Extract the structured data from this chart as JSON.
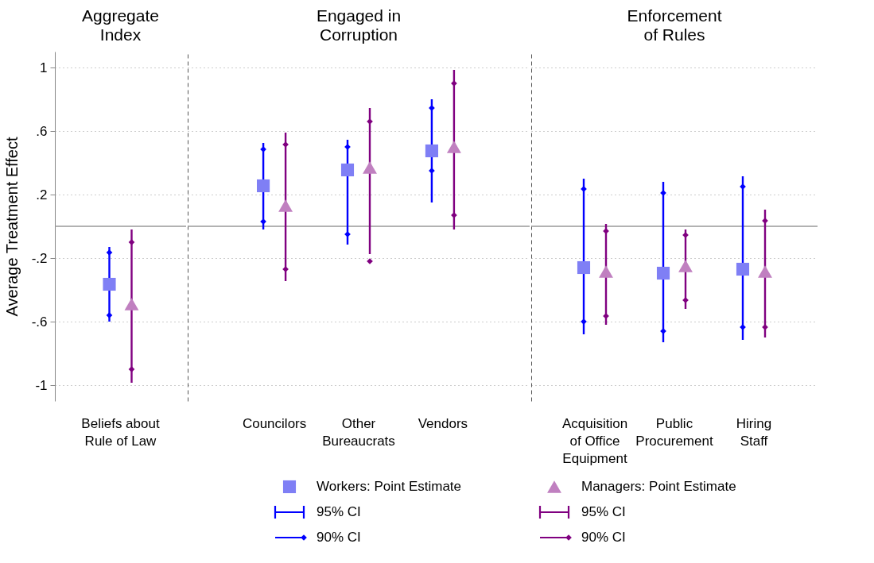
{
  "chart_data": [
    {
      "type": "scatter",
      "title": "Aggregate\nIndex",
      "ylabel": "Average Treatment Effect",
      "categories": [
        "Beliefs about\nRule of Law"
      ],
      "ylim": [
        -1.1,
        1.1
      ],
      "yticks": [
        {
          "value": -1,
          "label": "-1"
        },
        {
          "value": -0.6,
          "label": "-.6"
        },
        {
          "value": -0.2,
          "label": "-.2"
        },
        {
          "value": 0.2,
          "label": ".2"
        },
        {
          "value": 0.6,
          "label": ".6"
        },
        {
          "value": 1,
          "label": "1"
        }
      ],
      "grid": "y",
      "legend": "bottom",
      "ref_lines": [
        {
          "axis": "y",
          "value": 0,
          "color": "#999999"
        }
      ],
      "series": [
        {
          "name": "Workers: Point Estimate",
          "color": "#7f7ff5",
          "marker": "square",
          "values": [
            -0.365
          ]
        },
        {
          "name": "95% CI",
          "color": "#0000ff",
          "type": "bar",
          "base": [
            -0.6
          ],
          "values": [
            0.47
          ]
        },
        {
          "name": "90% CI",
          "color": "#0000ff",
          "marker": "diamond",
          "x": [
            "Beliefs about\nRule of Law",
            "Beliefs about\nRule of Law"
          ],
          "values": [
            -0.56,
            -0.165
          ]
        },
        {
          "name": "Managers: Point Estimate",
          "color": "#c080c0",
          "marker": "triangle",
          "values": [
            -0.49
          ]
        },
        {
          "name": "95% CI",
          "color": "#800080",
          "type": "bar",
          "base": [
            -0.985
          ],
          "values": [
            0.965
          ]
        },
        {
          "name": "90% CI",
          "color": "#800080",
          "marker": "diamond",
          "x": [
            "Beliefs about\nRule of Law",
            "Beliefs about\nRule of Law"
          ],
          "values": [
            -0.9,
            -0.1
          ]
        }
      ]
    },
    {
      "type": "scatter",
      "title": "Engaged in\nCorruption",
      "categories": [
        "Councilors",
        "Other\nBureaucrats",
        "Vendors"
      ],
      "ylim": [
        -1.1,
        1.1
      ],
      "yticks": [
        -1,
        -0.6,
        -0.2,
        0.2,
        0.6,
        1
      ],
      "grid": "y",
      "tick_labels": "x",
      "ref_lines": [
        {
          "axis": "y",
          "value": 0,
          "color": "#999999"
        }
      ],
      "series": [
        {
          "color": "#7f7ff5",
          "marker": "square",
          "values": [
            0.255,
            0.355,
            0.475
          ]
        },
        {
          "color": "#0000ff",
          "type": "bar",
          "base": [
            -0.02,
            -0.115,
            0.15
          ],
          "values": [
            0.545,
            0.66,
            0.65
          ]
        },
        {
          "color": "#0000ff",
          "marker": "diamond",
          "x": [
            "Councilors",
            "Councilors",
            "Other\nBureaucrats",
            "Other\nBureaucrats",
            "Vendors",
            "Vendors"
          ],
          "values": [
            0.03,
            0.485,
            -0.05,
            0.5,
            0.35,
            0.745
          ]
        },
        {
          "color": "#c080c0",
          "marker": "triangle",
          "values": [
            0.13,
            0.37,
            0.5
          ]
        },
        {
          "color": "#800080",
          "type": "bar",
          "base": [
            -0.345,
            -0.175,
            -0.02
          ],
          "values": [
            0.935,
            0.92,
            1.005
          ]
        },
        {
          "color": "#800080",
          "marker": "diamond",
          "x": [
            "Councilors",
            "Councilors",
            "Other\nBureaucrats",
            "Other\nBureaucrats",
            "Vendors",
            "Vendors"
          ],
          "values": [
            -0.27,
            0.515,
            -0.22,
            0.66,
            0.07,
            0.9
          ]
        }
      ]
    },
    {
      "type": "scatter",
      "title": "Enforcement\nof Rules",
      "categories": [
        "Acquisition\nof Office\nEquipment",
        "Public\nProcurement",
        "Hiring\nStaff"
      ],
      "ylim": [
        -1.1,
        1.1
      ],
      "yticks": [
        -1,
        -0.6,
        -0.2,
        0.2,
        0.6,
        1
      ],
      "grid": "y",
      "tick_labels": "x",
      "ref_lines": [
        {
          "axis": "y",
          "value": 0,
          "color": "#999999"
        }
      ],
      "series": [
        {
          "color": "#7f7ff5",
          "marker": "square",
          "values": [
            -0.26,
            -0.295,
            -0.27
          ]
        },
        {
          "color": "#0000ff",
          "type": "bar",
          "base": [
            -0.68,
            -0.73,
            -0.715
          ],
          "values": [
            0.98,
            1.01,
            1.03
          ]
        },
        {
          "color": "#0000ff",
          "marker": "diamond",
          "x": [
            "Acquisition\nof Office\nEquipment",
            "Acquisition\nof Office\nEquipment",
            "Public\nProcurement",
            "Public\nProcurement",
            "Hiring\nStaff",
            "Hiring\nStaff"
          ],
          "values": [
            -0.6,
            0.235,
            -0.66,
            0.21,
            -0.635,
            0.25
          ]
        },
        {
          "color": "#c080c0",
          "marker": "triangle",
          "values": [
            -0.285,
            -0.25,
            -0.285
          ]
        },
        {
          "color": "#800080",
          "type": "bar",
          "base": [
            -0.62,
            -0.52,
            -0.7
          ],
          "values": [
            0.635,
            0.5,
            0.805
          ]
        },
        {
          "color": "#800080",
          "marker": "diamond",
          "x": [
            "Acquisition\nof Office\nEquipment",
            "Acquisition\nof Office\nEquipment",
            "Public\nProcurement",
            "Public\nProcurement",
            "Hiring\nStaff",
            "Hiring\nStaff"
          ],
          "values": [
            -0.565,
            -0.03,
            -0.465,
            -0.055,
            -0.635,
            0.035
          ]
        }
      ]
    }
  ]
}
